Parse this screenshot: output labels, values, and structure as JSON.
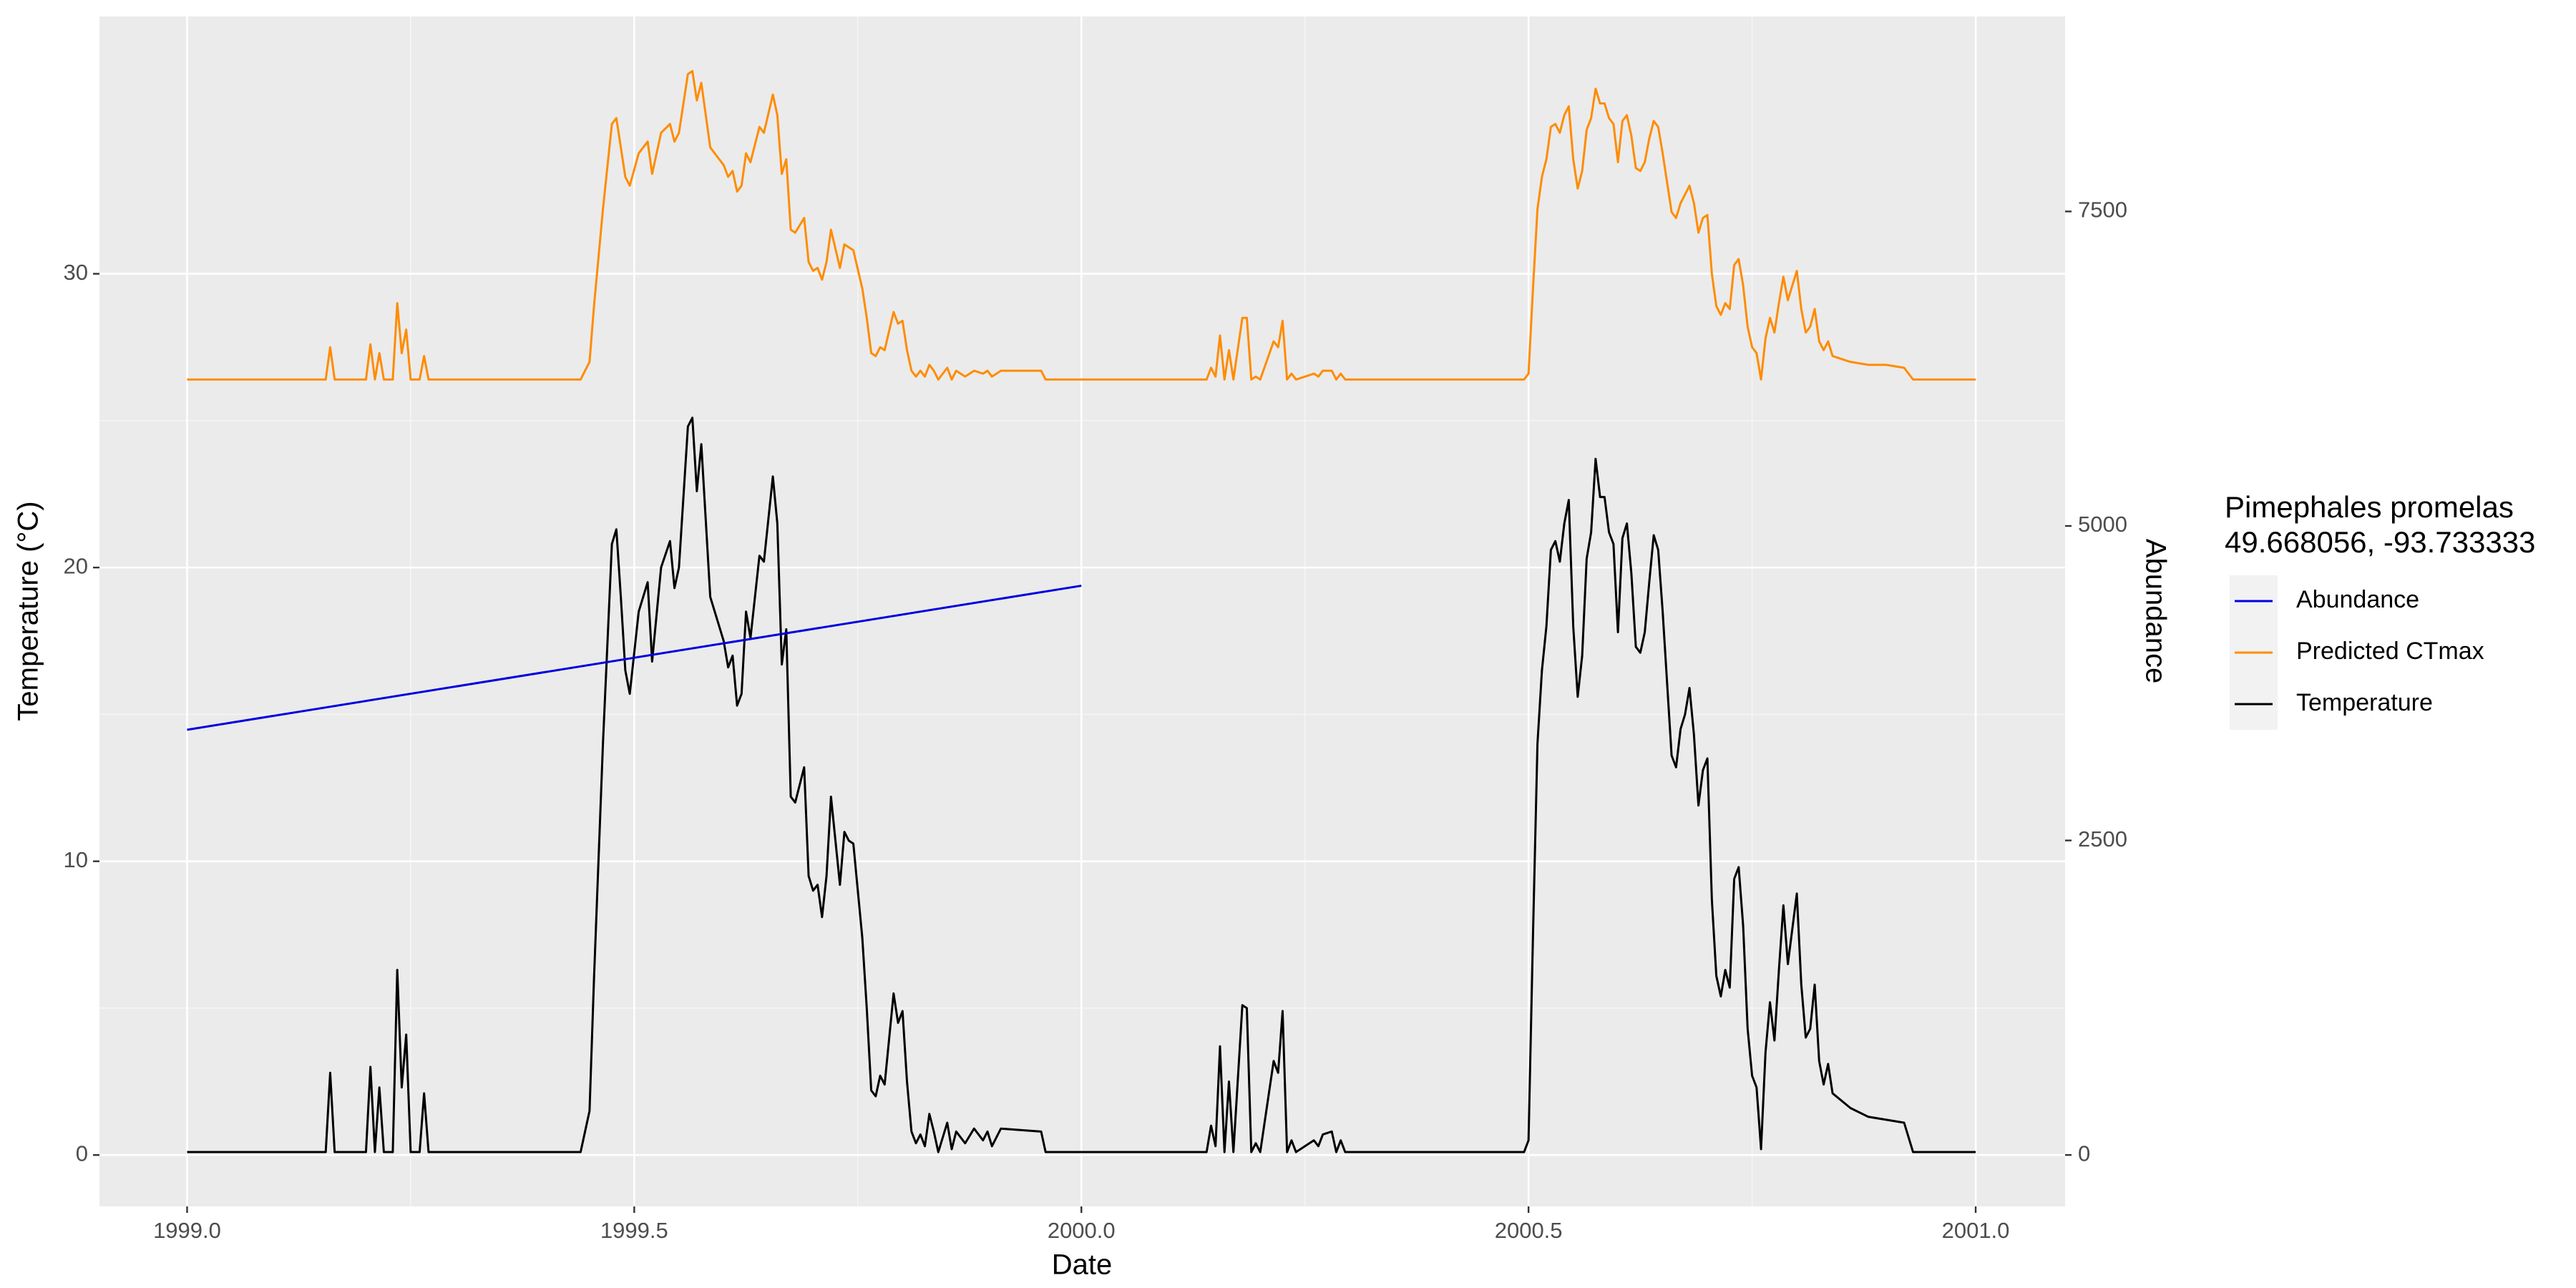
{
  "chart_data": {
    "type": "line",
    "x_label": "Date",
    "y_label": "Temperature (°C)",
    "y2_label": "Abundance",
    "y2_label_color": "#0000ff",
    "legend_title": [
      "Pimephales promelas",
      "49.668056, -93.733333"
    ],
    "legend": "right",
    "grid": true,
    "xlim": [
      1998.902,
      2001.1
    ],
    "ylim": [
      -1.75,
      38.76
    ],
    "y2lim": [
      -409,
      9050
    ],
    "xticks": [
      {
        "value": 1999,
        "label": "1999.0"
      },
      {
        "value": 1999.5,
        "label": "1999.5"
      },
      {
        "value": 2000,
        "label": "2000.0"
      },
      {
        "value": 2000.5,
        "label": "2000.5"
      },
      {
        "value": 2001,
        "label": "2001.0"
      }
    ],
    "yticks": [
      0,
      10,
      20,
      30
    ],
    "y2ticks": [
      0,
      2500,
      5000,
      7500
    ],
    "x": [
      1999.0,
      1999.155,
      1999.16,
      1999.165,
      1999.2,
      1999.205,
      1999.21,
      1999.215,
      1999.22,
      1999.23,
      1999.235,
      1999.24,
      1999.245,
      1999.25,
      1999.26,
      1999.265,
      1999.27,
      1999.44,
      1999.45,
      1999.455,
      1999.465,
      1999.475,
      1999.48,
      1999.485,
      1999.49,
      1999.495,
      1999.505,
      1999.515,
      1999.52,
      1999.53,
      1999.54,
      1999.545,
      1999.55,
      1999.56,
      1999.565,
      1999.57,
      1999.575,
      1999.585,
      1999.595,
      1999.6,
      1999.605,
      1999.61,
      1999.615,
      1999.62,
      1999.625,
      1999.63,
      1999.64,
      1999.645,
      1999.655,
      1999.66,
      1999.665,
      1999.67,
      1999.675,
      1999.68,
      1999.69,
      1999.695,
      1999.7,
      1999.705,
      1999.71,
      1999.715,
      1999.72,
      1999.73,
      1999.735,
      1999.74,
      1999.745,
      1999.755,
      1999.76,
      1999.765,
      1999.77,
      1999.775,
      1999.78,
      1999.79,
      1999.795,
      1999.8,
      1999.805,
      1999.81,
      1999.815,
      1999.82,
      1999.825,
      1999.83,
      1999.835,
      1999.84,
      1999.85,
      1999.855,
      1999.86,
      1999.87,
      1999.88,
      1999.89,
      1999.895,
      1999.9,
      1999.91,
      1999.955,
      1999.96,
      2000.14,
      2000.145,
      2000.15,
      2000.155,
      2000.16,
      2000.165,
      2000.17,
      2000.18,
      2000.185,
      2000.19,
      2000.195,
      2000.2,
      2000.215,
      2000.22,
      2000.225,
      2000.23,
      2000.235,
      2000.24,
      2000.26,
      2000.265,
      2000.27,
      2000.28,
      2000.285,
      2000.29,
      2000.295,
      2000.495,
      2000.5,
      2000.505,
      2000.51,
      2000.515,
      2000.52,
      2000.525,
      2000.53,
      2000.535,
      2000.54,
      2000.545,
      2000.55,
      2000.555,
      2000.56,
      2000.565,
      2000.57,
      2000.575,
      2000.58,
      2000.585,
      2000.59,
      2000.595,
      2000.6,
      2000.605,
      2000.61,
      2000.615,
      2000.62,
      2000.625,
      2000.63,
      2000.635,
      2000.64,
      2000.645,
      2000.65,
      2000.66,
      2000.665,
      2000.67,
      2000.675,
      2000.68,
      2000.685,
      2000.69,
      2000.695,
      2000.7,
      2000.705,
      2000.71,
      2000.715,
      2000.72,
      2000.725,
      2000.73,
      2000.735,
      2000.74,
      2000.745,
      2000.75,
      2000.755,
      2000.76,
      2000.765,
      2000.77,
      2000.775,
      2000.78,
      2000.785,
      2000.79,
      2000.8,
      2000.805,
      2000.81,
      2000.815,
      2000.82,
      2000.825,
      2000.83,
      2000.835,
      2000.84,
      2000.86,
      2000.88,
      2000.9,
      2000.92,
      2000.93,
      2001.0
    ],
    "series": [
      {
        "name": "Abundance",
        "color": "#0000e0",
        "axis": "y2",
        "x": [
          1999.0,
          2000.0
        ],
        "values": [
          3380,
          4525
        ]
      },
      {
        "name": "Predicted CTmax",
        "color": "#ff8c00",
        "values": [
          26.4,
          26.4,
          27.5,
          26.4,
          26.4,
          27.6,
          26.4,
          27.3,
          26.4,
          26.4,
          29.0,
          27.3,
          28.1,
          26.4,
          26.4,
          27.2,
          26.4,
          26.4,
          27.0,
          28.9,
          32.2,
          35.1,
          35.3,
          34.3,
          33.3,
          33.0,
          34.1,
          34.5,
          33.4,
          34.8,
          35.1,
          34.5,
          34.8,
          36.8,
          36.9,
          35.9,
          36.5,
          34.3,
          33.9,
          33.7,
          33.3,
          33.5,
          32.8,
          33.0,
          34.1,
          33.8,
          35.0,
          34.8,
          36.1,
          35.4,
          33.4,
          33.9,
          31.5,
          31.4,
          31.9,
          30.4,
          30.1,
          30.2,
          29.8,
          30.4,
          31.5,
          30.2,
          31.0,
          30.9,
          30.8,
          29.5,
          28.5,
          27.3,
          27.2,
          27.5,
          27.4,
          28.7,
          28.3,
          28.4,
          27.4,
          26.7,
          26.5,
          26.7,
          26.5,
          26.9,
          26.7,
          26.4,
          26.8,
          26.4,
          26.7,
          26.5,
          26.7,
          26.6,
          26.7,
          26.5,
          26.7,
          26.7,
          26.4,
          26.4,
          26.8,
          26.5,
          27.9,
          26.4,
          27.4,
          26.4,
          28.5,
          28.5,
          26.4,
          26.5,
          26.4,
          27.7,
          27.5,
          28.4,
          26.4,
          26.6,
          26.4,
          26.6,
          26.5,
          26.7,
          26.7,
          26.4,
          26.6,
          26.4,
          26.4,
          26.6,
          29.5,
          32.2,
          33.3,
          33.9,
          35.0,
          35.1,
          34.8,
          35.4,
          35.7,
          33.9,
          32.9,
          33.5,
          34.9,
          35.3,
          36.3,
          35.8,
          35.8,
          35.3,
          35.1,
          33.8,
          35.2,
          35.4,
          34.7,
          33.6,
          33.5,
          33.8,
          34.6,
          35.2,
          35.0,
          34.1,
          32.1,
          31.9,
          32.4,
          32.7,
          33.0,
          32.4,
          31.4,
          31.9,
          32.0,
          30.0,
          28.9,
          28.6,
          29.0,
          28.8,
          30.3,
          30.5,
          29.6,
          28.2,
          27.5,
          27.3,
          26.4,
          27.8,
          28.5,
          28.0,
          29.0,
          29.9,
          29.1,
          30.1,
          28.8,
          28.0,
          28.2,
          28.8,
          27.7,
          27.4,
          27.7,
          27.2,
          27.0,
          26.9,
          26.9,
          26.8,
          26.4,
          26.4
        ]
      },
      {
        "name": "Temperature",
        "color": "#000000",
        "values": [
          0.1,
          0.1,
          2.8,
          0.1,
          0.1,
          3.0,
          0.1,
          2.3,
          0.1,
          0.1,
          6.3,
          2.3,
          4.1,
          0.1,
          0.1,
          2.1,
          0.1,
          0.1,
          1.5,
          6,
          14,
          20.8,
          21.3,
          19,
          16.5,
          15.7,
          18.5,
          19.5,
          16.8,
          20,
          20.9,
          19.3,
          20,
          24.8,
          25.1,
          22.6,
          24.2,
          19,
          18,
          17.5,
          16.6,
          17,
          15.3,
          15.7,
          18.5,
          17.6,
          20.4,
          20.2,
          23.1,
          21.5,
          16.7,
          17.9,
          12.2,
          12,
          13.2,
          9.5,
          9,
          9.2,
          8.1,
          9.5,
          12.2,
          9.2,
          11,
          10.7,
          10.6,
          7.4,
          5,
          2.2,
          2,
          2.7,
          2.4,
          5.5,
          4.5,
          4.9,
          2.5,
          0.8,
          0.4,
          0.7,
          0.3,
          1.4,
          0.8,
          0.1,
          1.1,
          0.2,
          0.8,
          0.4,
          0.9,
          0.5,
          0.8,
          0.3,
          0.9,
          0.8,
          0.1,
          0.1,
          1.0,
          0.3,
          3.7,
          0.1,
          2.5,
          0.1,
          5.1,
          5.0,
          0.1,
          0.4,
          0.1,
          3.2,
          2.8,
          4.9,
          0.1,
          0.5,
          0.1,
          0.5,
          0.3,
          0.7,
          0.8,
          0.1,
          0.5,
          0.1,
          0.1,
          0.5,
          7.5,
          14,
          16.5,
          18,
          20.6,
          20.9,
          20.2,
          21.5,
          22.3,
          18,
          15.6,
          17,
          20.3,
          21.2,
          23.7,
          22.4,
          22.4,
          21.2,
          20.8,
          17.8,
          21,
          21.5,
          19.8,
          17.3,
          17.1,
          17.8,
          19.5,
          21.1,
          20.6,
          18.5,
          13.6,
          13.2,
          14.5,
          15,
          15.9,
          14.3,
          11.9,
          13.1,
          13.5,
          8.7,
          6.1,
          5.4,
          6.3,
          5.7,
          9.4,
          9.8,
          7.8,
          4.3,
          2.7,
          2.3,
          0.2,
          3.5,
          5.2,
          3.9,
          6.3,
          8.5,
          6.5,
          8.9,
          5.8,
          4,
          4.3,
          5.8,
          3.2,
          2.4,
          3.1,
          2.1,
          1.6,
          1.3,
          1.2,
          1.1,
          0.1,
          0.1
        ]
      }
    ]
  }
}
